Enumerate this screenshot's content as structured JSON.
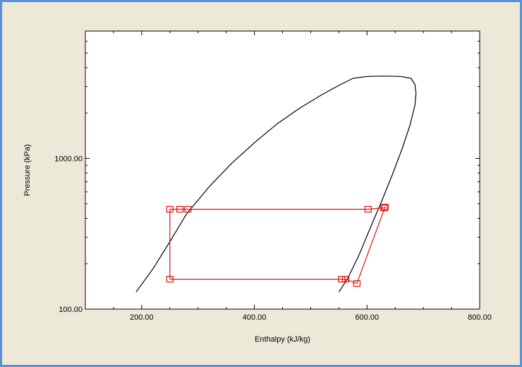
{
  "colors": {
    "window_border": "#5b8fd6",
    "panel_background": "#ece9d8",
    "plot_background": "#ffffff",
    "dome_line": "#000000",
    "cycle_line": "#e01010"
  },
  "chart_data": {
    "type": "line",
    "xlabel": "Enthalpy (kJ/kg)",
    "ylabel": "Pressure (kPa)",
    "xlim": [
      100,
      800
    ],
    "ylim": [
      100,
      7000
    ],
    "yscale": "log",
    "x_tick_labels": [
      "200.00",
      "400.00",
      "600.00",
      "800.00"
    ],
    "y_tick_labels": [
      "100.00",
      "1000.00"
    ],
    "grid": false,
    "series": [
      {
        "role": "saturation-dome",
        "x": [
          190,
          220,
          250,
          280,
          320,
          360,
          400,
          440,
          480,
          520,
          550,
          575,
          600,
          630,
          660,
          678,
          685,
          687,
          685,
          676,
          662,
          645,
          625,
          605,
          585,
          565,
          550
        ],
        "y": [
          130,
          185,
          280,
          430,
          650,
          930,
          1270,
          1690,
          2150,
          2650,
          3050,
          3400,
          3500,
          3520,
          3500,
          3400,
          3100,
          2700,
          2250,
          1650,
          1150,
          780,
          510,
          340,
          225,
          158,
          130
        ]
      },
      {
        "role": "refrigeration-cycle",
        "x": [
          250,
          250,
          268,
          282,
          602,
          630,
          632,
          582,
          562,
          555,
          250
        ],
        "y": [
          158,
          460,
          460,
          460,
          460,
          470,
          475,
          148,
          158,
          158,
          158
        ]
      }
    ],
    "markers": [
      {
        "x": 250,
        "y": 460
      },
      {
        "x": 268,
        "y": 460
      },
      {
        "x": 282,
        "y": 460
      },
      {
        "x": 602,
        "y": 460
      },
      {
        "x": 630,
        "y": 470
      },
      {
        "x": 632,
        "y": 475
      },
      {
        "x": 250,
        "y": 158
      },
      {
        "x": 555,
        "y": 158
      },
      {
        "x": 562,
        "y": 158
      },
      {
        "x": 582,
        "y": 148
      }
    ]
  }
}
